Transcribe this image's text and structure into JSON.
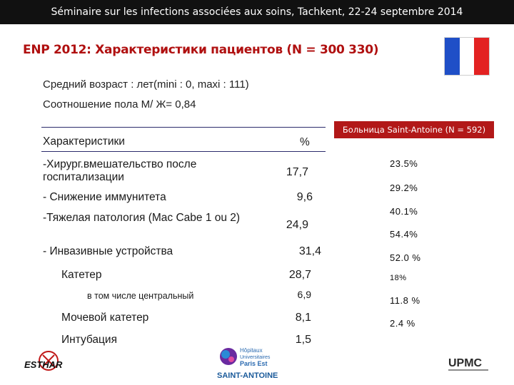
{
  "header": {
    "text": "Séminaire sur les infections associées aux soins, Tachkent, 22-24 septembre 2014"
  },
  "title": "ENP 2012: Характеристики пациентов (N = 300 330)",
  "intro": {
    "age": "Средний возраст : лет(mini : 0, maxi : 111)",
    "sex_ratio": "Соотношение пола М/ Ж= 0,84"
  },
  "table": {
    "header_label": "Характеристики",
    "header_value": "%",
    "rows": [
      {
        "label": "-Хирург.вмешательство после госпитализации",
        "value": "17,7"
      },
      {
        "label": "- Снижение иммунитета",
        "value": "9,6"
      },
      {
        "label": "-Тяжелая патология (Mac Cabe 1 ou 2)",
        "value": "24,9"
      },
      {
        "label": "- Инвазивные устройства",
        "value": "31,4"
      },
      {
        "label": "Катетер",
        "value": "28,7"
      },
      {
        "label": "в том числе центральный",
        "value": "6,9"
      },
      {
        "label": "Мочевой катетер",
        "value": "8,1"
      },
      {
        "label": "Интубация",
        "value": "1,5"
      }
    ]
  },
  "hospital": {
    "header": "Больница Saint-Antoine (N = 592)",
    "values": [
      "23.5%",
      "29.2%",
      "40.1%",
      "54.4%",
      "52.0 %",
      "18%",
      "11.8 %",
      "2.4 %"
    ]
  },
  "logos": {
    "esthar": "ESTHAR",
    "hopitaux_line1": "Hôpitaux",
    "hopitaux_line2": "Universitaires",
    "hopitaux_line3": "Paris Est",
    "saint_antoine": "SAINT-ANTOINE",
    "upmc": "UPMC"
  },
  "colors": {
    "title": "#b01010",
    "hospital_header_bg": "#b21818",
    "rule": "#2b2b6b",
    "flag_blue": "#1f4fc7",
    "flag_red": "#e32222"
  }
}
